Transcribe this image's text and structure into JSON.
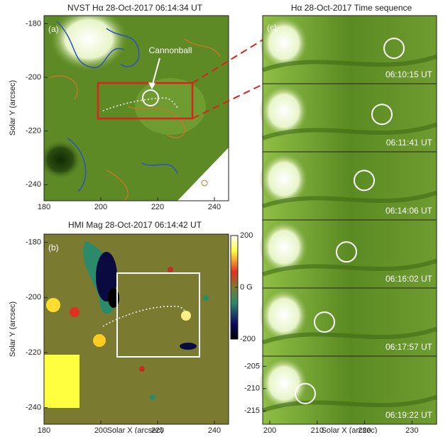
{
  "panel_a": {
    "title": "NVST Hα  28-Oct-2017 06:14:34 UT",
    "label": "(a)",
    "annotation": "Cannonball",
    "y_axis_label": "Solar Y (arcsec)",
    "xlim": [
      180,
      245
    ],
    "ylim": [
      -246,
      -177
    ],
    "xticks": [
      180,
      200,
      220,
      240
    ],
    "yticks": [
      -180,
      -200,
      -220,
      -240
    ]
  },
  "panel_b": {
    "title": "HMI Mag  28-Oct-2017 06:14:42 UT",
    "label": "(b)",
    "x_axis_label": "Solar X (arcsec)",
    "y_axis_label": "Solar Y (arcsec)",
    "xlim": [
      180,
      245
    ],
    "ylim": [
      -246,
      -177
    ],
    "xticks": [
      180,
      200,
      220,
      240
    ],
    "yticks": [
      -180,
      -200,
      -220,
      -240
    ],
    "colorbar": {
      "lim": [
        -200,
        200
      ],
      "ticks": [
        200,
        {
          "value": 0,
          "label": "0 G"
        },
        -200
      ]
    }
  },
  "panel_c": {
    "title": "Hα  28-Oct-2017  Time sequence",
    "label": "(c)",
    "frames": [
      "06:10:15 UT",
      "06:11:41 UT",
      "06:14:06 UT",
      "06:16:02 UT",
      "06:17:57 UT",
      "06:19:22 UT"
    ],
    "x_axis_label": "Solar X (arcsec)",
    "xlim": [
      198.5,
      235.2
    ],
    "xticks": [
      200,
      210,
      220,
      230
    ],
    "ylim": [
      -218,
      -202.7
    ],
    "yticks": [
      -205,
      -210,
      -215
    ]
  }
}
